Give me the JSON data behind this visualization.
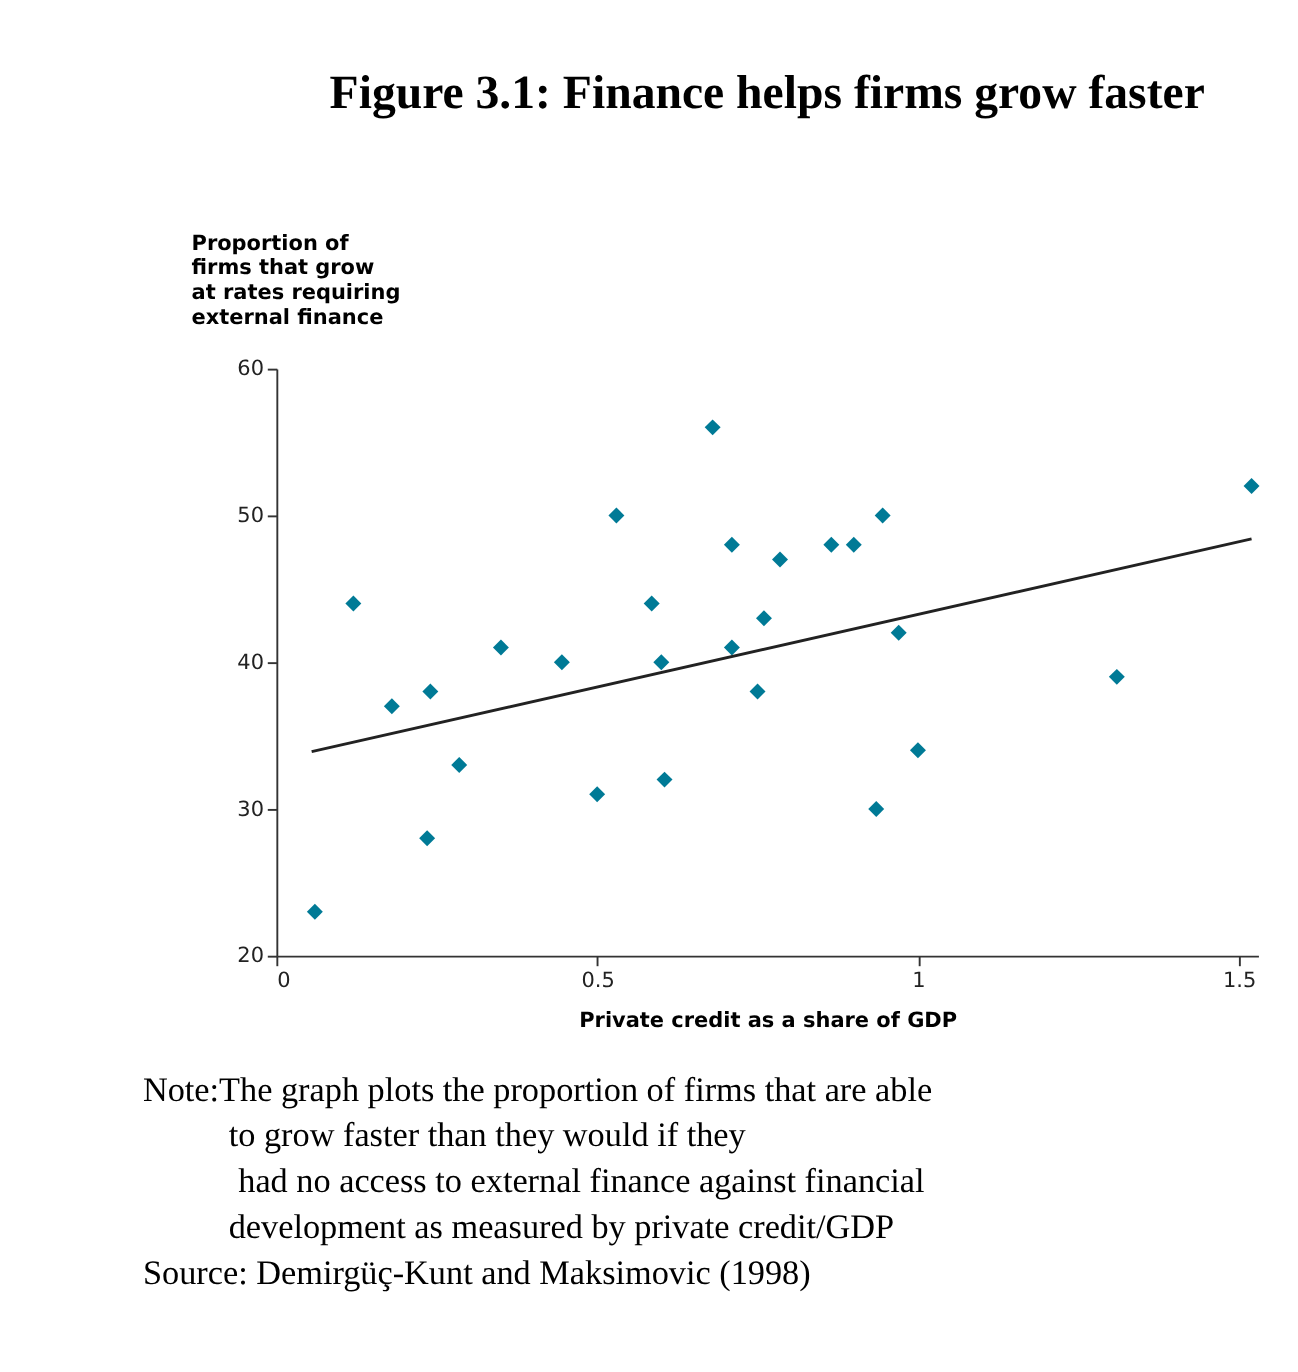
{
  "chart_data": {
    "type": "scatter",
    "title": "Figure 3.1: Finance helps firms grow faster",
    "xlabel": "Private credit as a share of GDP",
    "ylabel": "Proportion of\nfirms that grow\nat rates requiring\nexternal finance",
    "xlim": [
      0,
      1.53
    ],
    "xticks": [
      0,
      0.5,
      1,
      1.5
    ],
    "ylim": [
      20,
      60
    ],
    "yticks": [
      20,
      30,
      40,
      50,
      60
    ],
    "grid": false,
    "series": [
      {
        "color": "#007a96",
        "marker": "diamond",
        "x": [
          0.06,
          0.12,
          0.18,
          0.24,
          0.235,
          0.285,
          0.35,
          0.445,
          0.5,
          0.53,
          0.585,
          0.6,
          0.605,
          0.68,
          0.71,
          0.71,
          0.75,
          0.76,
          0.785,
          0.865,
          0.9,
          0.945,
          0.935,
          0.97,
          1.0,
          1.31,
          1.52
        ],
        "values": [
          23,
          44,
          37,
          38,
          28,
          33,
          41,
          40,
          31,
          50,
          44,
          40,
          32,
          56,
          48,
          41,
          38,
          43,
          47,
          48,
          48,
          50,
          30,
          42,
          34,
          39,
          52
        ]
      },
      {
        "type": "line",
        "color": "#222222",
        "x": [
          0.055,
          1.52
        ],
        "values": [
          33.9,
          48.4
        ]
      }
    ],
    "annotations": [
      "Note:The graph plots the proportion of firms that are able\nto grow faster than they would if they\nhad no access to external finance against financial\ndevelopment as measured by private credit/GDP",
      "Source: Demirgüç-Kunt and Maksimovic (1998)"
    ]
  }
}
